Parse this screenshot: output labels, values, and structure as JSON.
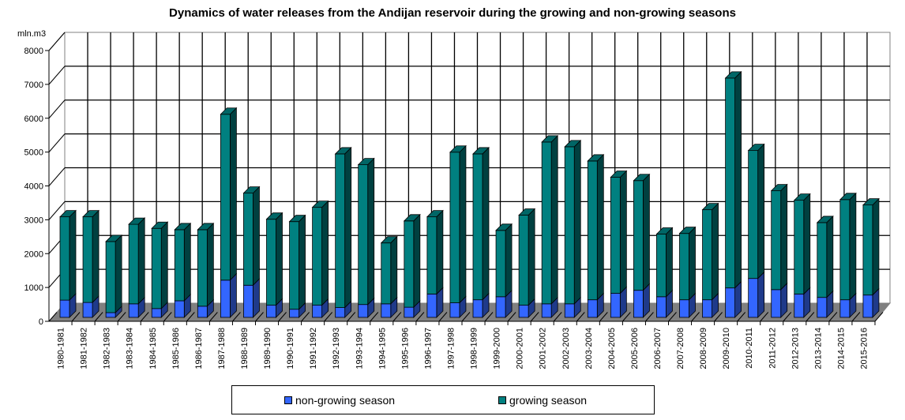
{
  "chart_data": {
    "type": "bar",
    "stacked": true,
    "three_d": true,
    "title": "Dynamics of water releases from the Andijan reservoir during the growing and non-growing seasons",
    "ylabel": "mln.m3",
    "xlabel": "",
    "ylim": [
      0,
      8000
    ],
    "yticks": [
      "0",
      "1000",
      "2000",
      "3000",
      "4000",
      "5000",
      "6000",
      "7000",
      "8000"
    ],
    "grid": true,
    "legend_position": "bottom",
    "categories": [
      "1980-1981",
      "1981-1982",
      "1982-1983",
      "1983-1984",
      "1984-1985",
      "1985-1986",
      "1986-1987",
      "1987-1988",
      "1988-1989",
      "1989-1990",
      "1990-1991",
      "1991-1992",
      "1992-1993",
      "1993-1994",
      "1994-1995",
      "1995-1996",
      "1996-1997",
      "1997-1998",
      "1998-1999",
      "1999-2000",
      "2000-2001",
      "2001-2002",
      "2002-2003",
      "2003-2004",
      "2004-2005",
      "2005-2006",
      "2006-2007",
      "2007-2008",
      "2008-2009",
      "2009-2010",
      "2010-2011",
      "2011-2012",
      "2012-2013",
      "2013-2014",
      "2014-2015",
      "2015-2016"
    ],
    "series": [
      {
        "name": "non-growing season",
        "color": "#3366ff",
        "side_color": "#1f3a8a",
        "values": [
          510,
          440,
          140,
          400,
          260,
          490,
          330,
          1100,
          950,
          360,
          240,
          360,
          290,
          380,
          400,
          300,
          690,
          430,
          520,
          610,
          360,
          400,
          400,
          520,
          710,
          800,
          610,
          520,
          520,
          870,
          1150,
          820,
          690,
          590,
          520,
          660
        ]
      },
      {
        "name": "growing season",
        "color": "#008080",
        "side_color": "#004040",
        "top_color": "#006666",
        "values": [
          2460,
          2530,
          2100,
          2350,
          2370,
          2100,
          2260,
          4900,
          2720,
          2540,
          2590,
          2890,
          4540,
          4130,
          1800,
          2550,
          2280,
          4450,
          4310,
          1960,
          2660,
          4780,
          4640,
          4100,
          3430,
          3240,
          1850,
          1960,
          2660,
          6200,
          3780,
          2920,
          2770,
          2210,
          2960,
          2660
        ]
      }
    ]
  }
}
